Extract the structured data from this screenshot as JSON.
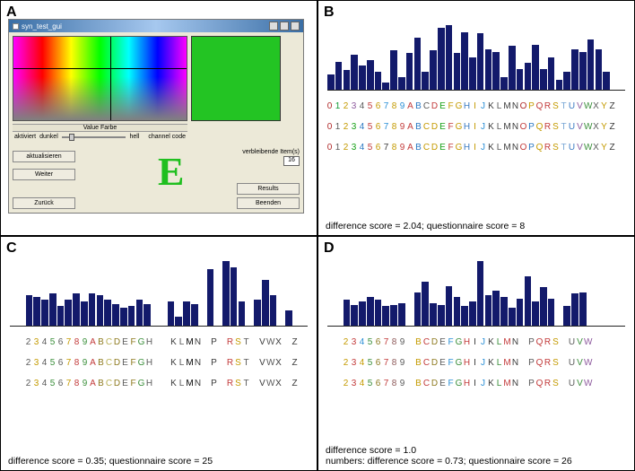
{
  "labels": {
    "A": "A",
    "B": "B",
    "C": "C",
    "D": "D"
  },
  "panelA": {
    "title": "syn_test_gui",
    "section_label": "Value Farbe",
    "slider_left": "aktiviert",
    "slider_mid": "dunkel",
    "slider_right": "hell",
    "slider_rlabel": "channel code",
    "btn_aktualisieren": "aktualisieren",
    "btn_weiter": "Weiter",
    "btn_zurueck": "Zurück",
    "lbl_remaining": "verbleibende Item(s)",
    "num_remaining": "16",
    "btn_results": "Results",
    "btn_beenden": "Beenden",
    "big_letter": "E",
    "swatch_color": "#23c423",
    "letter_color": "#1fbf1f"
  },
  "chars": [
    "0",
    "1",
    "2",
    "3",
    "4",
    "5",
    "6",
    "7",
    "8",
    "9",
    "A",
    "B",
    "C",
    "D",
    "E",
    "F",
    "G",
    "H",
    "I",
    "J",
    "K",
    "L",
    "M",
    "N",
    "O",
    "P",
    "Q",
    "R",
    "S",
    "T",
    "U",
    "V",
    "W",
    "X",
    "Y",
    "Z"
  ],
  "panelB": {
    "bars": [
      22,
      40,
      28,
      50,
      34,
      42,
      26,
      10,
      56,
      18,
      53,
      74,
      26,
      56,
      88,
      92,
      52,
      82,
      46,
      80,
      58,
      54,
      18,
      62,
      30,
      38,
      64,
      30,
      46,
      14,
      26,
      58,
      54,
      72,
      58,
      26
    ],
    "bar_color": "#131a6b",
    "row_colors": [
      [
        "#b02a2a",
        "#109a34",
        "#c49a00",
        "#8e5a9e",
        "#5a5a5a",
        "#c23a3a",
        "#c49a00",
        "#2a8fd6",
        "#c49a00",
        "#2a8fd6",
        "#c23a3a",
        "#2a78c2",
        "#5a5a5a",
        "#c23a3a",
        "#16a016",
        "#c49a00",
        "#c49a00",
        "#3a7ac2",
        "#c49a00",
        "#2a8fd6",
        "#3a3a3a",
        "#5a5a5a",
        "#3a3a3a",
        "#3a3a3a",
        "#b02a2a",
        "#c49a00",
        "#c23a3a",
        "#c23a3a",
        "#c49a00",
        "#7aa7d6",
        "#3a7ac2",
        "#8e5a9e",
        "#3b8f3b",
        "#5a5a5a",
        "#c49a00",
        "#3a3a3a"
      ],
      [
        "#b02a2a",
        "#5a5a5a",
        "#c49a00",
        "#16a016",
        "#2a78c2",
        "#c23a3a",
        "#c49a00",
        "#2a8fd6",
        "#c49a00",
        "#c23a3a",
        "#c23a3a",
        "#2a78c2",
        "#c49a00",
        "#c49a00",
        "#16a016",
        "#c23a3a",
        "#c49a00",
        "#3a7ac2",
        "#c49a00",
        "#2a8fd6",
        "#3a3a3a",
        "#5a5a5a",
        "#3a3a3a",
        "#3a3a3a",
        "#c23a3a",
        "#2a78c2",
        "#c49a00",
        "#c23a3a",
        "#c49a00",
        "#7aa7d6",
        "#3a7ac2",
        "#8e5a9e",
        "#3b8f3b",
        "#5a5a5a",
        "#c49a00",
        "#3a3a3a"
      ],
      [
        "#b02a2a",
        "#5a5a5a",
        "#c49a00",
        "#16a016",
        "#2a78c2",
        "#c23a3a",
        "#c49a00",
        "#3a3a3a",
        "#c49a00",
        "#c23a3a",
        "#c23a3a",
        "#2a78c2",
        "#c49a00",
        "#c49a00",
        "#16a016",
        "#c23a3a",
        "#c49a00",
        "#3a7ac2",
        "#c49a00",
        "#2a8fd6",
        "#3a3a3a",
        "#5a5a5a",
        "#3a3a3a",
        "#3a3a3a",
        "#c23a3a",
        "#2a78c2",
        "#c49a00",
        "#c23a3a",
        "#c49a00",
        "#7aa7d6",
        "#3a7ac2",
        "#8e5a9e",
        "#3b8f3b",
        "#5a5a5a",
        "#c49a00",
        "#3a3a3a"
      ]
    ],
    "hidden": [],
    "caption": "difference score = 2.04; questionnaire score = 8"
  },
  "panelC": {
    "bars": [
      0,
      0,
      28,
      26,
      24,
      30,
      18,
      24,
      30,
      22,
      30,
      28,
      24,
      20,
      16,
      18,
      24,
      20,
      0,
      0,
      22,
      8,
      22,
      20,
      0,
      52,
      0,
      60,
      54,
      22,
      0,
      24,
      42,
      28,
      0,
      14
    ],
    "bar_color": "#131a6b",
    "row_colors": [
      [
        "#000",
        "#000",
        "#5a5a5a",
        "#c49a00",
        "#5a5a5a",
        "#3b8f3b",
        "#5a5a5a",
        "#c49a00",
        "#c23a3a",
        "#3b8f3b",
        "#c23a3a",
        "#8e7a20",
        "#b9b055",
        "#8e7a20",
        "#5a5a5a",
        "#8e7a20",
        "#3b8f3b",
        "#5a5a5a",
        "#000",
        "#000",
        "#3a3a3a",
        "#5a5a5a",
        "#000",
        "#3a3a3a",
        "#3a3a3a",
        "#3a3a3a",
        "#000",
        "#c23a3a",
        "#c49a00",
        "#5a5a5a",
        "#000",
        "#3a3a3a",
        "#5a5a5a",
        "#3a3a3a",
        "#000",
        "#3a3a3a"
      ],
      [
        "#000",
        "#000",
        "#5a5a5a",
        "#c49a00",
        "#5a5a5a",
        "#3b8f3b",
        "#5a5a5a",
        "#c49a00",
        "#c23a3a",
        "#3b8f3b",
        "#c23a3a",
        "#8e7a20",
        "#b9b055",
        "#8e7a20",
        "#5a5a5a",
        "#8e7a20",
        "#3b8f3b",
        "#5a5a5a",
        "#000",
        "#000",
        "#3a3a3a",
        "#5a5a5a",
        "#000",
        "#3a3a3a",
        "#3a3a3a",
        "#3a3a3a",
        "#000",
        "#c23a3a",
        "#c49a00",
        "#5a5a5a",
        "#000",
        "#3a3a3a",
        "#5a5a5a",
        "#3a3a3a",
        "#000",
        "#3a3a3a"
      ],
      [
        "#000",
        "#000",
        "#5a5a5a",
        "#c49a00",
        "#5a5a5a",
        "#3b8f3b",
        "#5a5a5a",
        "#c49a00",
        "#c23a3a",
        "#3b8f3b",
        "#c23a3a",
        "#8e7a20",
        "#b9b055",
        "#8e7a20",
        "#5a5a5a",
        "#8e7a20",
        "#3b8f3b",
        "#5a5a5a",
        "#000",
        "#000",
        "#3a3a3a",
        "#5a5a5a",
        "#000",
        "#3a3a3a",
        "#3a3a3a",
        "#3a3a3a",
        "#000",
        "#c23a3a",
        "#c49a00",
        "#5a5a5a",
        "#000",
        "#3a3a3a",
        "#5a5a5a",
        "#3a3a3a",
        "#000",
        "#3a3a3a"
      ]
    ],
    "hidden": [
      0,
      1,
      18,
      19,
      24,
      26,
      30,
      34
    ],
    "caption": "difference score = 0.35; questionnaire score = 25"
  },
  "panelD": {
    "bars": [
      0,
      0,
      32,
      26,
      30,
      36,
      32,
      24,
      26,
      28,
      0,
      42,
      55,
      28,
      26,
      50,
      36,
      24,
      30,
      82,
      38,
      44,
      36,
      22,
      34,
      62,
      30,
      48,
      34,
      0,
      24,
      40,
      42,
      0,
      0,
      0
    ],
    "bar_color": "#131a6b",
    "row_colors": [
      [
        "#000",
        "#000",
        "#c49a00",
        "#c23a3a",
        "#2a8fd6",
        "#3b8f3b",
        "#8e7a20",
        "#c23a3a",
        "#8e5a5a",
        "#5a5a5a",
        "#000",
        "#c49a00",
        "#c23a3a",
        "#8e7a20",
        "#5a5a5a",
        "#2a8fd6",
        "#3b8f3b",
        "#c23a3a",
        "#3a3a3a",
        "#2a8fd6",
        "#3a3a3a",
        "#3b8f3b",
        "#c23a3a",
        "#3a3a3a",
        "#000",
        "#5a5a5a",
        "#c23a3a",
        "#c23a3a",
        "#c49a00",
        "#000",
        "#5a5a5a",
        "#3b8f3b",
        "#8e5a9e",
        "#000",
        "#000",
        "#000"
      ],
      [
        "#000",
        "#000",
        "#c49a00",
        "#c23a3a",
        "#c49a00",
        "#3b8f3b",
        "#8e7a20",
        "#c23a3a",
        "#8e5a5a",
        "#5a5a5a",
        "#000",
        "#c49a00",
        "#c23a3a",
        "#8e7a20",
        "#5a5a5a",
        "#2a8fd6",
        "#3b8f3b",
        "#c23a3a",
        "#3a3a3a",
        "#2a8fd6",
        "#3a3a3a",
        "#3b8f3b",
        "#c23a3a",
        "#3a3a3a",
        "#000",
        "#5a5a5a",
        "#c23a3a",
        "#c23a3a",
        "#c49a00",
        "#000",
        "#5a5a5a",
        "#3b8f3b",
        "#8e5a9e",
        "#000",
        "#000",
        "#000"
      ],
      [
        "#000",
        "#000",
        "#c49a00",
        "#c23a3a",
        "#c49a00",
        "#3b8f3b",
        "#8e7a20",
        "#c23a3a",
        "#8e5a5a",
        "#5a5a5a",
        "#000",
        "#c49a00",
        "#c23a3a",
        "#8e7a20",
        "#5a5a5a",
        "#2a8fd6",
        "#3b8f3b",
        "#c23a3a",
        "#3a3a3a",
        "#2a8fd6",
        "#3a3a3a",
        "#3b8f3b",
        "#c23a3a",
        "#3a3a3a",
        "#000",
        "#5a5a5a",
        "#c23a3a",
        "#c23a3a",
        "#c49a00",
        "#000",
        "#5a5a5a",
        "#3b8f3b",
        "#8e5a9e",
        "#000",
        "#000",
        "#000"
      ]
    ],
    "hidden": [
      0,
      1,
      10,
      24,
      29,
      33,
      34,
      35
    ],
    "caption_line1": "difference score = 1.0",
    "caption_line2": "numbers: difference score = 0.73; questionnaire score = 26"
  }
}
